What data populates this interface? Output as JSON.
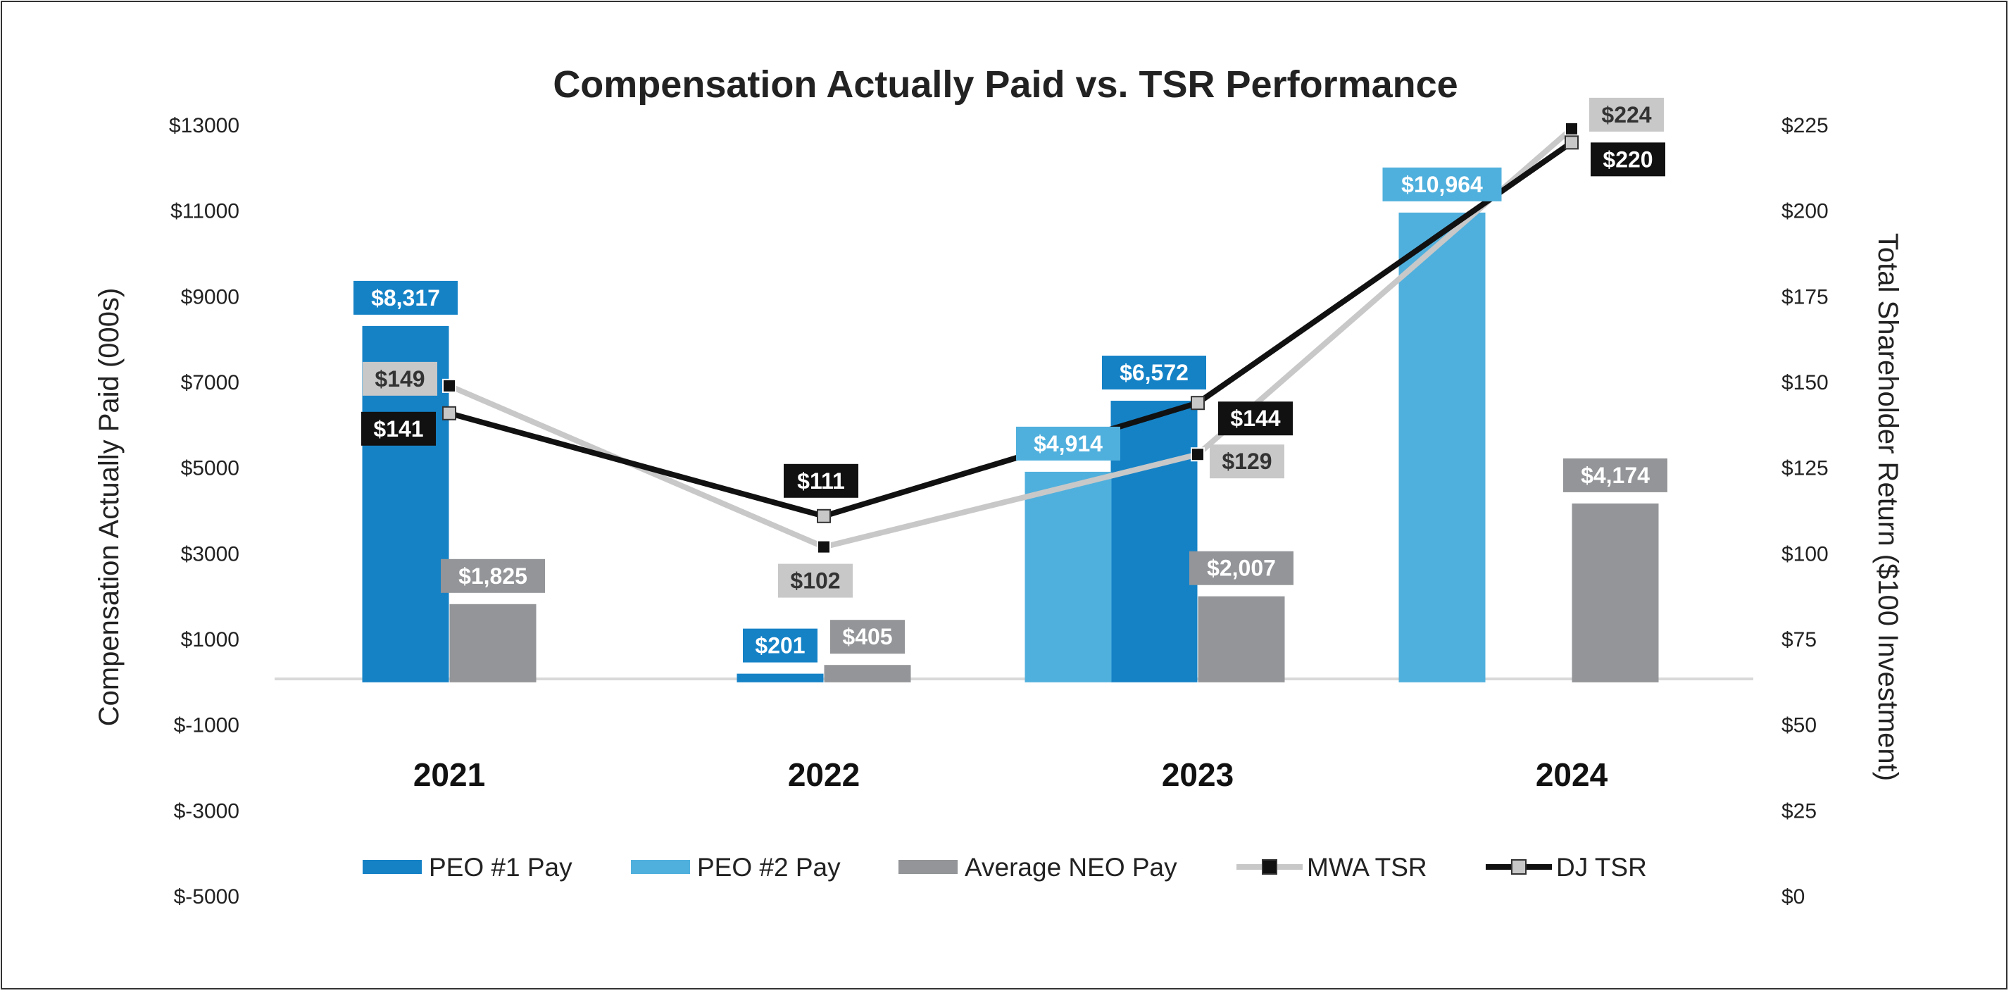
{
  "chart_data": {
    "type": "bar+line",
    "title": "Compensation Actually Paid vs. TSR Performance",
    "ylabel_left": "Compensation Actually Paid (000s)",
    "ylabel_right": "Total Shareholder Return ($100 Investment)",
    "categories": [
      "2021",
      "2022",
      "2023",
      "2024"
    ],
    "left_axis": {
      "ylim": [
        -5000,
        13000
      ],
      "ticks": [
        13000,
        11000,
        9000,
        7000,
        5000,
        3000,
        1000,
        -1000,
        -3000,
        -5000
      ],
      "tick_labels": [
        "$13000",
        "$11000",
        "$9000",
        "$7000",
        "$5000",
        "$3000",
        "$1000",
        "$-1000",
        "$-3000",
        "$-5000"
      ]
    },
    "right_axis": {
      "ylim": [
        0,
        225
      ],
      "ticks": [
        225,
        200,
        175,
        150,
        125,
        100,
        75,
        50,
        25,
        0
      ],
      "tick_labels": [
        "$225",
        "$200",
        "$175",
        "$150",
        "$125",
        "$100",
        "$75",
        "$50",
        "$25",
        "$0"
      ]
    },
    "bar_series": [
      {
        "name": "PEO #1 Pay",
        "color": "#1582C6",
        "values": [
          8317,
          201,
          6572,
          null
        ],
        "labels": [
          "$8,317",
          "$201",
          "$6,572",
          null
        ]
      },
      {
        "name": "PEO #2 Pay",
        "color": "#50B0DD",
        "values": [
          null,
          null,
          4914,
          10964
        ],
        "labels": [
          null,
          null,
          "$4,914",
          "$10,964"
        ]
      },
      {
        "name": "Average NEO Pay",
        "color": "#939598",
        "values": [
          1825,
          405,
          2007,
          4174
        ],
        "labels": [
          "$1,825",
          "$405",
          "$2,007",
          "$4,174"
        ]
      }
    ],
    "line_series": [
      {
        "name": "MWA TSR",
        "line_color": "#C8C8C8",
        "marker_color": "#111111",
        "values": [
          149,
          102,
          129,
          224
        ],
        "labels": [
          "$149",
          "$102",
          "$129",
          "$224"
        ],
        "label_bg": "#C8C8C8",
        "label_color": "#333333"
      },
      {
        "name": "DJ TSR",
        "line_color": "#111111",
        "marker_color": "#C8C8C8",
        "values": [
          141,
          111,
          144,
          220
        ],
        "labels": [
          "$141",
          "$111",
          "$144",
          "$220"
        ],
        "label_bg": "#111111",
        "label_color": "#ffffff"
      }
    ],
    "legend": [
      "PEO #1 Pay",
      "PEO #2 Pay",
      "Average NEO Pay",
      "MWA TSR",
      "DJ TSR"
    ],
    "legend_position": "bottom"
  }
}
